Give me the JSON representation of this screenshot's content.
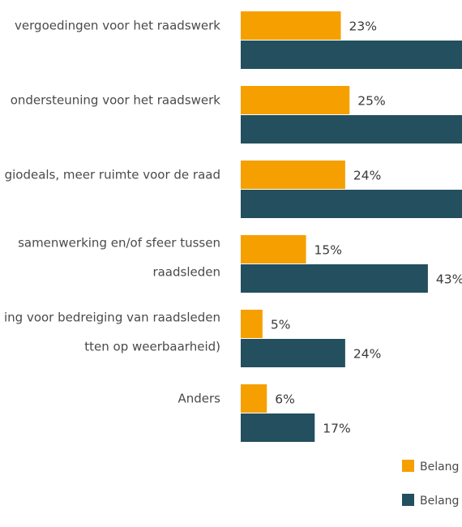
{
  "chart_data": {
    "type": "bar",
    "orientation": "horizontal",
    "categories": [
      [
        "vergoedingen voor het raadswerk"
      ],
      [
        "ondersteuning voor het raadswerk"
      ],
      [
        "giodeals, meer ruimte voor de raad"
      ],
      [
        "samenwerking en/of sfeer tussen",
        "raadsleden"
      ],
      [
        "ing voor bedreiging van raadsleden",
        "tten op weerbaarheid)"
      ],
      [
        "Anders"
      ]
    ],
    "series": [
      {
        "name": "Belang",
        "color": "#F5A000",
        "values": [
          23,
          25,
          24,
          15,
          5,
          6
        ],
        "labels": [
          "23%",
          "25%",
          "24%",
          "15%",
          "5%",
          "6%"
        ]
      },
      {
        "name": "Belang",
        "color": "#234F5E",
        "values": [
          null,
          null,
          null,
          43,
          24,
          17
        ],
        "labels": [
          "",
          "",
          "",
          "43%",
          "24%",
          "17%"
        ]
      }
    ],
    "xlim": [
      0,
      100
    ],
    "grid": false,
    "legend_position": "bottom-right"
  }
}
